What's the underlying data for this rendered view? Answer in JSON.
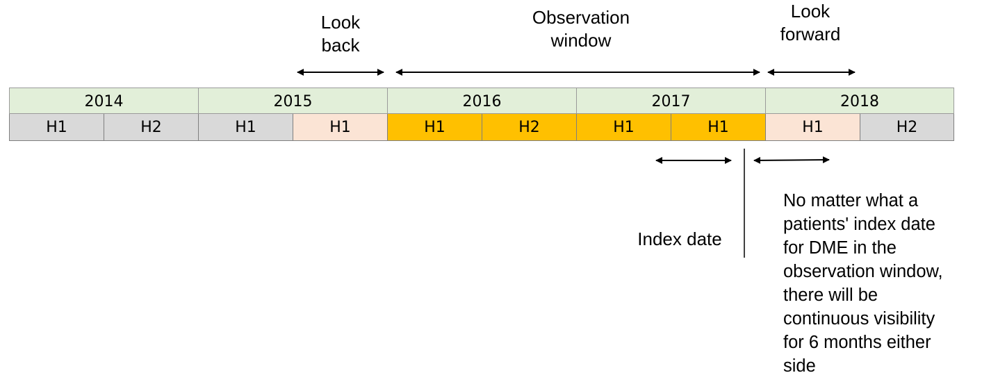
{
  "labels": {
    "look_back": "Look\nback",
    "observation_window": "Observation\nwindow",
    "look_forward": "Look\nforward",
    "index_date": "Index date",
    "note": "No matter what a\npatients' index date\nfor DME in the\nobservation window,\nthere will be\ncontinuous visibility\nfor 6 months either\nside"
  },
  "years": [
    "2014",
    "2015",
    "2016",
    "2017",
    "2018"
  ],
  "halves": [
    {
      "label": "H1",
      "color": "#d9d9d9"
    },
    {
      "label": "H2",
      "color": "#d9d9d9"
    },
    {
      "label": "H1",
      "color": "#d9d9d9"
    },
    {
      "label": "H1",
      "color": "#fbe4d5"
    },
    {
      "label": "H1",
      "color": "#ffc000"
    },
    {
      "label": "H2",
      "color": "#ffc000"
    },
    {
      "label": "H1",
      "color": "#ffc000"
    },
    {
      "label": "H1",
      "color": "#ffc000"
    },
    {
      "label": "H1",
      "color": "#fbe4d5"
    },
    {
      "label": "H2",
      "color": "#d9d9d9"
    }
  ],
  "colors": {
    "year_fill": "#e2efd9",
    "grey_half": "#d9d9d9",
    "peach_half": "#fbe4d5",
    "observation_half": "#ffc000"
  }
}
